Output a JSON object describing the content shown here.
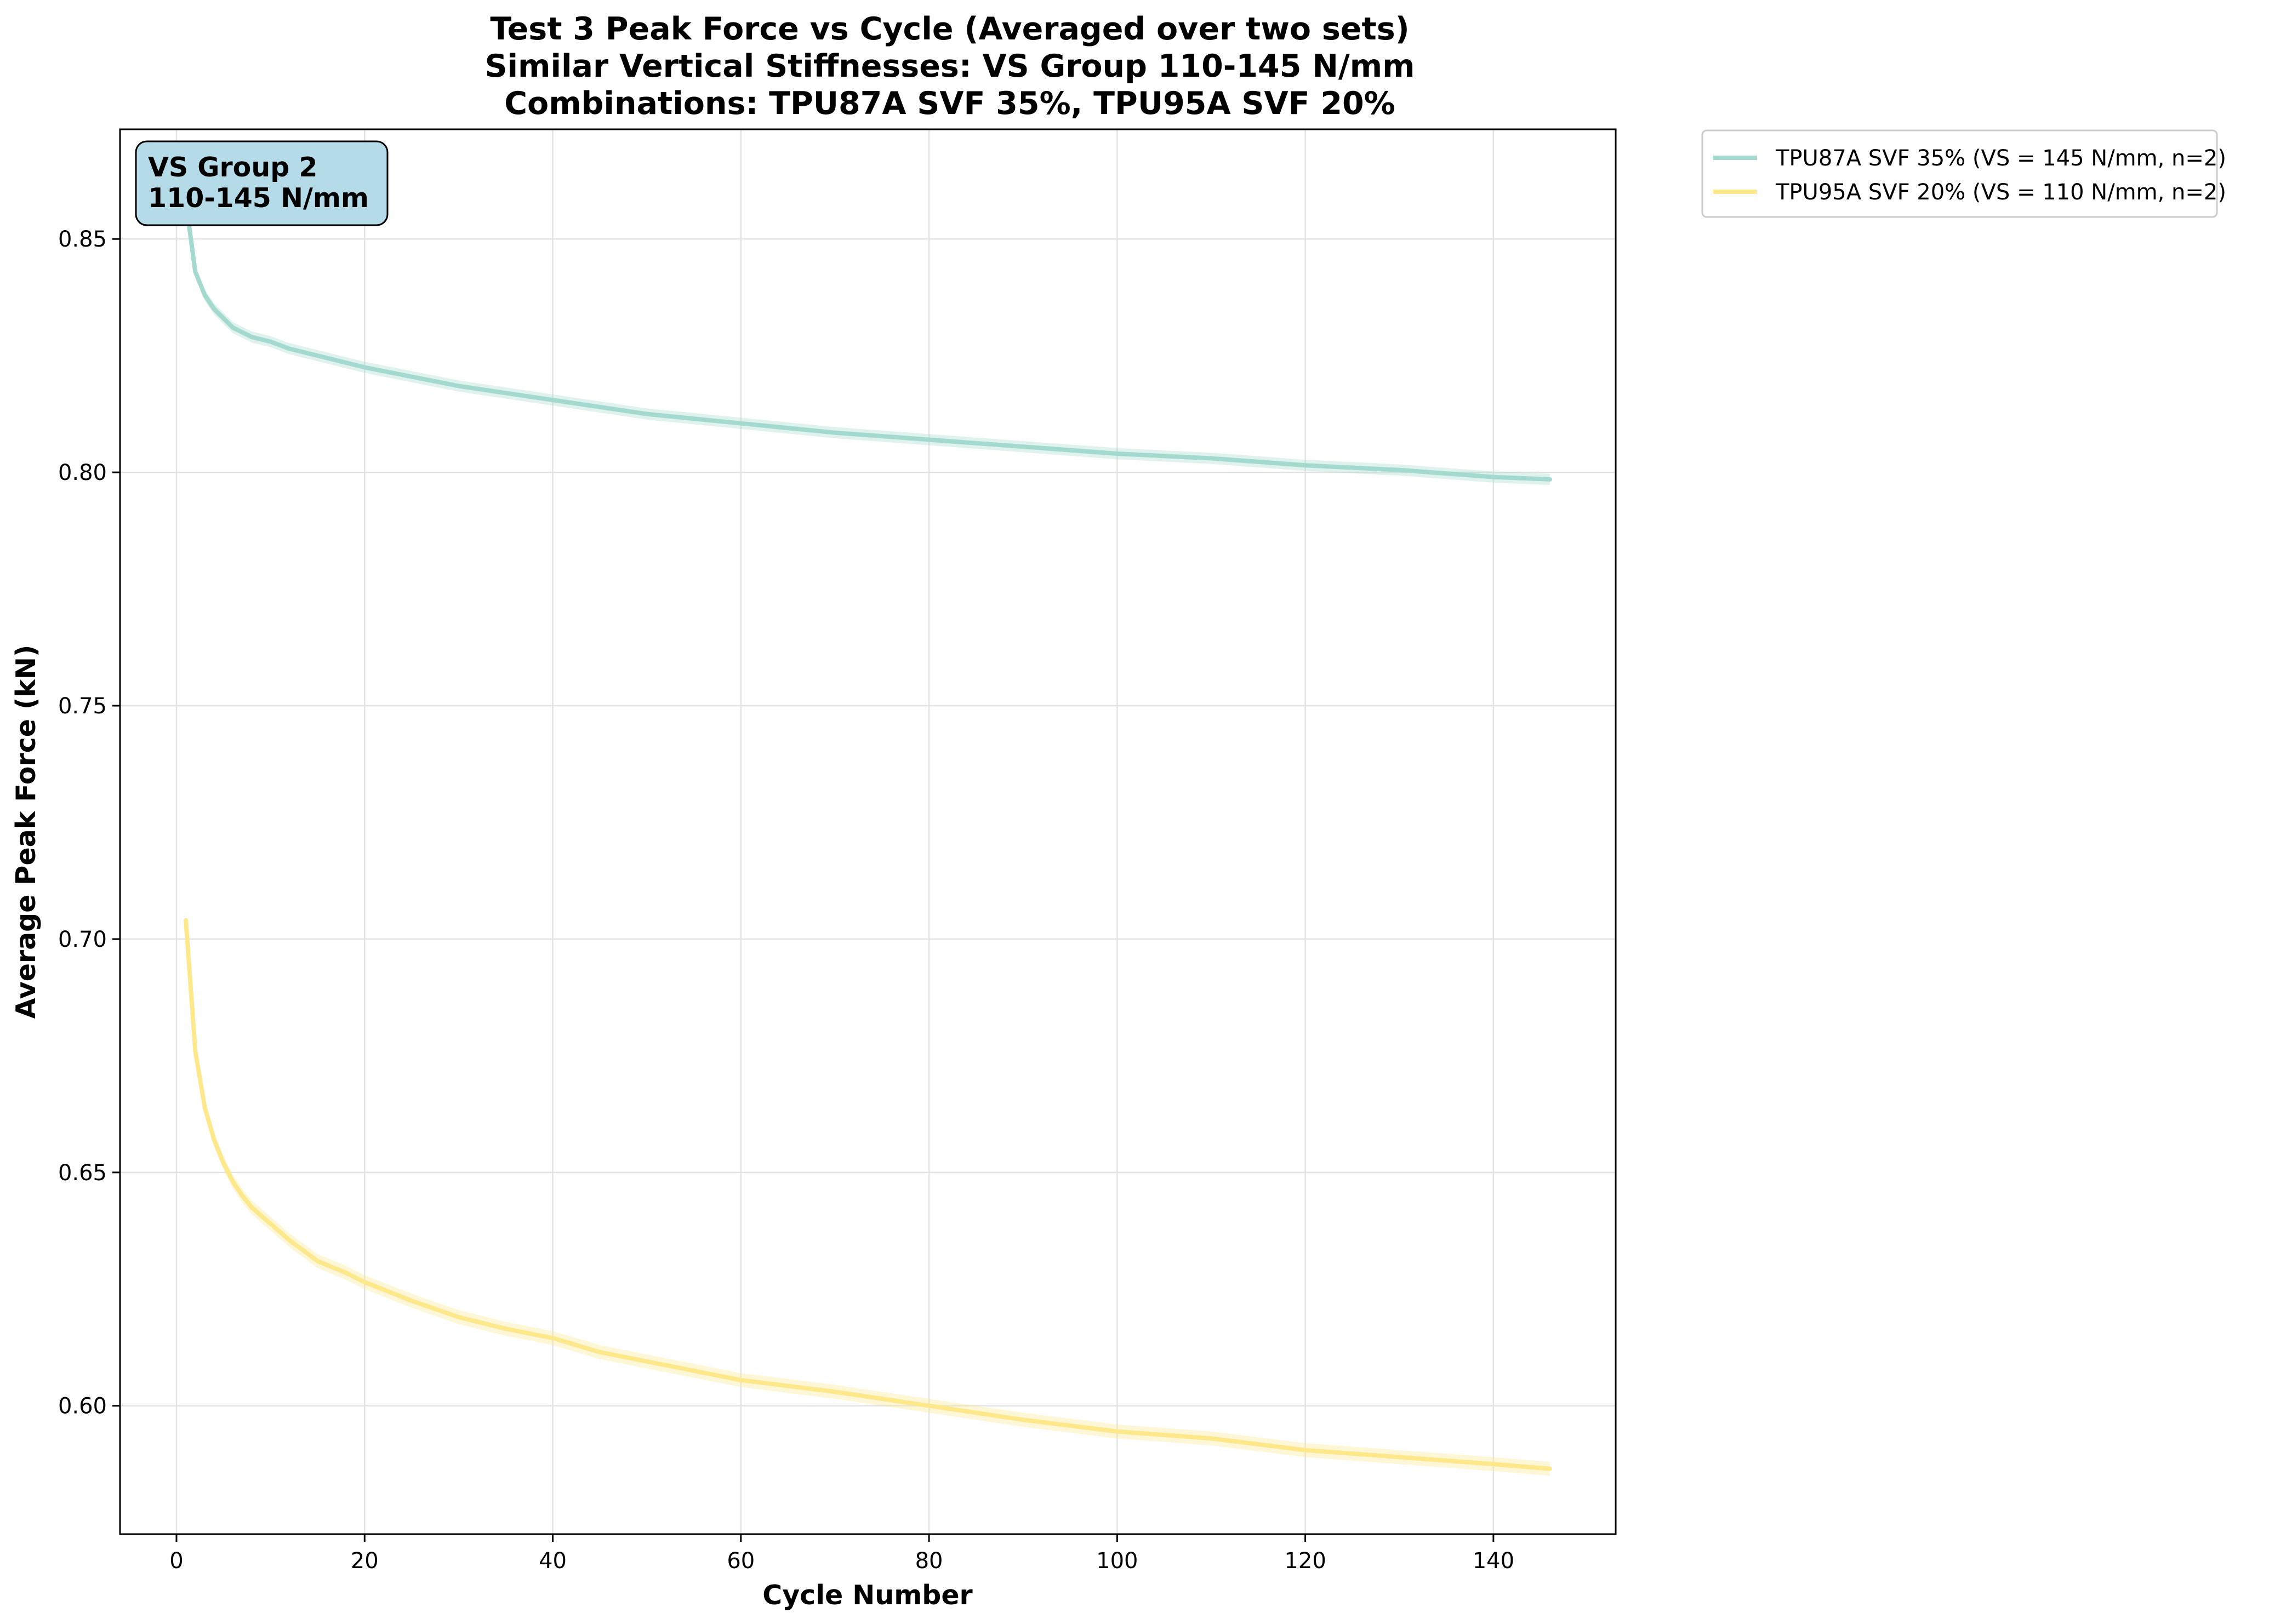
{
  "chart_data": {
    "type": "line",
    "title_lines": [
      "Test 3 Peak Force vs Cycle (Averaged over two sets)",
      "Similar Vertical Stiffnesses: VS Group 110-145 N/mm",
      "Combinations: TPU87A SVF 35%, TPU95A SVF 20%"
    ],
    "xlabel": "Cycle Number",
    "ylabel": "Average Peak Force (kN)",
    "xlim": [
      -6,
      153
    ],
    "ylim": [
      0.5725,
      0.8735
    ],
    "x_ticks": [
      0,
      20,
      40,
      60,
      80,
      100,
      120,
      140
    ],
    "y_ticks": [
      0.6,
      0.65,
      0.7,
      0.75,
      0.8,
      0.85
    ],
    "grid": true,
    "legend_position": "outside-top-right",
    "annotation": {
      "lines": [
        "VS Group 2",
        "110-145 N/mm"
      ],
      "background": "#b5dbe8",
      "position": "top-left"
    },
    "series": [
      {
        "name": "TPU87A SVF 35% (VS = 145 N/mm, n=2)",
        "color": "#a3d9cf",
        "band_width": 0.0012,
        "points": [
          [
            1,
            0.858
          ],
          [
            2,
            0.843
          ],
          [
            3,
            0.838
          ],
          [
            4,
            0.835
          ],
          [
            5,
            0.833
          ],
          [
            6,
            0.831
          ],
          [
            7,
            0.83
          ],
          [
            8,
            0.829
          ],
          [
            10,
            0.828
          ],
          [
            12,
            0.8265
          ],
          [
            15,
            0.825
          ],
          [
            18,
            0.8235
          ],
          [
            20,
            0.8225
          ],
          [
            25,
            0.8205
          ],
          [
            30,
            0.8185
          ],
          [
            35,
            0.817
          ],
          [
            40,
            0.8155
          ],
          [
            45,
            0.814
          ],
          [
            50,
            0.8125
          ],
          [
            60,
            0.8105
          ],
          [
            70,
            0.8085
          ],
          [
            80,
            0.807
          ],
          [
            90,
            0.8055
          ],
          [
            100,
            0.804
          ],
          [
            110,
            0.803
          ],
          [
            120,
            0.8015
          ],
          [
            130,
            0.8005
          ],
          [
            140,
            0.799
          ],
          [
            146,
            0.7985
          ]
        ]
      },
      {
        "name": "TPU95A SVF 20% (VS = 110 N/mm, n=2)",
        "color": "#fde98c",
        "band_width": 0.0015,
        "points": [
          [
            1,
            0.704
          ],
          [
            2,
            0.676
          ],
          [
            3,
            0.664
          ],
          [
            4,
            0.657
          ],
          [
            5,
            0.652
          ],
          [
            6,
            0.648
          ],
          [
            7,
            0.645
          ],
          [
            8,
            0.6425
          ],
          [
            10,
            0.639
          ],
          [
            12,
            0.6355
          ],
          [
            15,
            0.631
          ],
          [
            18,
            0.6285
          ],
          [
            20,
            0.6265
          ],
          [
            25,
            0.6225
          ],
          [
            30,
            0.619
          ],
          [
            35,
            0.6165
          ],
          [
            40,
            0.6145
          ],
          [
            45,
            0.6115
          ],
          [
            50,
            0.6095
          ],
          [
            60,
            0.6055
          ],
          [
            70,
            0.603
          ],
          [
            80,
            0.6
          ],
          [
            90,
            0.597
          ],
          [
            100,
            0.5945
          ],
          [
            110,
            0.593
          ],
          [
            120,
            0.5905
          ],
          [
            130,
            0.589
          ],
          [
            140,
            0.5875
          ],
          [
            146,
            0.5865
          ]
        ]
      }
    ]
  }
}
